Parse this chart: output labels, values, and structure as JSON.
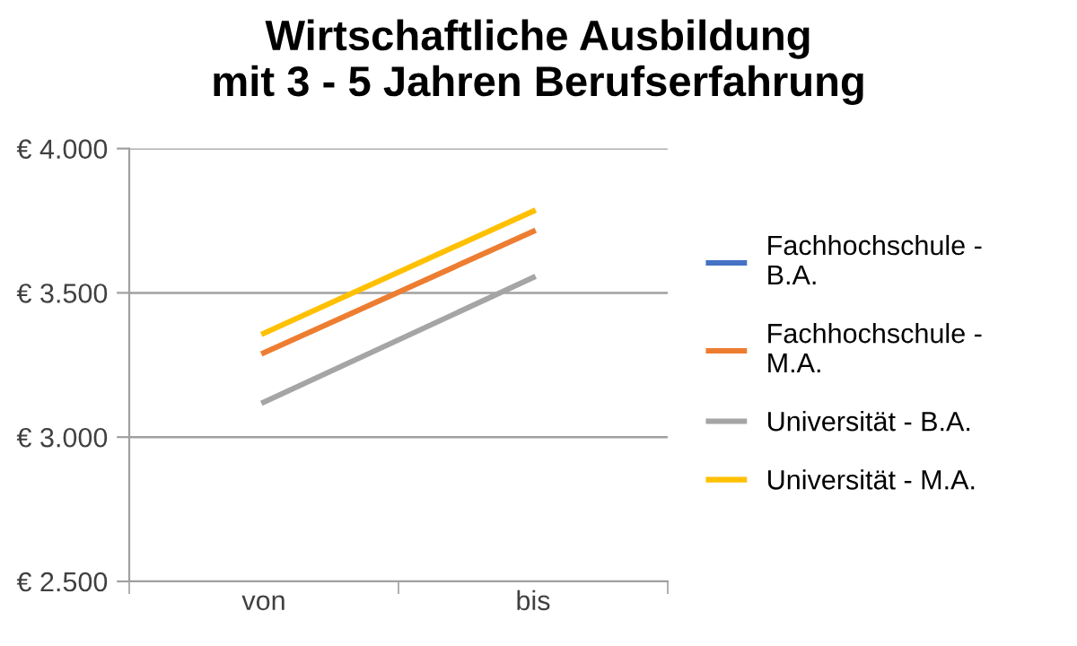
{
  "chart_data": {
    "type": "line",
    "title": "Wirtschaftliche Ausbildung\nmit 3 - 5 Jahren Berufserfahrung",
    "categories": [
      "von",
      "bis"
    ],
    "series": [
      {
        "name": "Fachhochschule -\nB.A.",
        "color": "#4472c4",
        "values": [
          null,
          null
        ]
      },
      {
        "name": "Fachhochschule -\nM.A.",
        "color": "#ed7d31",
        "values": [
          3292,
          3713
        ]
      },
      {
        "name": "Universität - B.A.",
        "color": "#a5a5a5",
        "values": [
          3121,
          3553
        ]
      },
      {
        "name": "Universität - M.A.",
        "color": "#ffc000",
        "values": [
          3360,
          3783
        ]
      }
    ],
    "ylim": [
      2500,
      4000
    ],
    "yticks": [
      {
        "value": 2500,
        "label": "€ 2.500"
      },
      {
        "value": 3000,
        "label": "€ 3.000"
      },
      {
        "value": 3500,
        "label": "€ 3.500"
      },
      {
        "value": 4000,
        "label": "€ 4.000"
      }
    ],
    "grid": "y",
    "legend": "right",
    "marker": "none",
    "line_style": "solid"
  }
}
